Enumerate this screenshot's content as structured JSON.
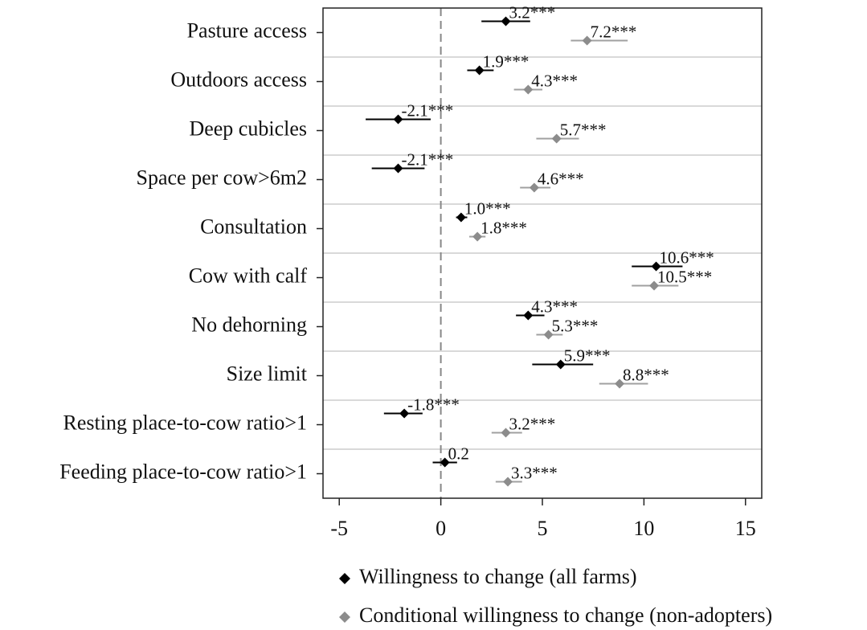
{
  "chart_data": {
    "type": "coefplot",
    "categories": [
      "Pasture access",
      "Outdoors access",
      "Deep cubicles",
      "Space per cow>6m2",
      "Consultation",
      "Cow with calf",
      "No dehorning",
      "Size limit",
      "Resting place-to-cow ratio>1",
      "Feeding place-to-cow ratio>1"
    ],
    "series": [
      {
        "name": "Willingness to change (all farms)",
        "color": "#000000",
        "values": [
          3.2,
          1.9,
          -2.1,
          -2.1,
          1.0,
          10.6,
          4.3,
          5.9,
          -1.8,
          0.2
        ],
        "value_labels": [
          "3.2***",
          "1.9***",
          "-2.1***",
          "-2.1***",
          "1.0***",
          "10.6***",
          "4.3***",
          "5.9***",
          "-1.8***",
          "0.2"
        ],
        "lower": [
          2.0,
          1.3,
          -3.7,
          -3.4,
          0.75,
          9.4,
          3.7,
          4.5,
          -2.8,
          -0.4
        ],
        "upper": [
          4.4,
          2.6,
          -0.5,
          -0.8,
          1.3,
          11.9,
          5.1,
          7.5,
          -0.9,
          0.8
        ]
      },
      {
        "name": "Conditional willingness to change (non-adopters)",
        "color": "#8c8c8c",
        "values": [
          7.2,
          4.3,
          5.7,
          4.6,
          1.8,
          10.5,
          5.3,
          8.8,
          3.2,
          3.3
        ],
        "value_labels": [
          "7.2***",
          "4.3***",
          "5.7***",
          "4.6***",
          "1.8***",
          "10.5***",
          "5.3***",
          "8.8***",
          "3.2***",
          "3.3***"
        ],
        "lower": [
          6.4,
          3.6,
          4.7,
          3.9,
          1.4,
          9.4,
          4.7,
          7.8,
          2.5,
          2.7
        ],
        "upper": [
          9.2,
          5.0,
          6.8,
          5.4,
          2.2,
          11.7,
          6.0,
          10.2,
          4.0,
          4.0
        ]
      }
    ],
    "xlim": [
      -5.8,
      15.8
    ],
    "xticks": [
      -5,
      0,
      5,
      10,
      15
    ],
    "reference_line": 0
  }
}
